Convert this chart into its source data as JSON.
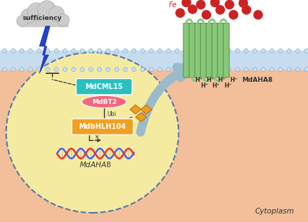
{
  "bg_color": "#F2BF9A",
  "membrane_color": "#C8DCF0",
  "membrane_line_color": "#90B8D8",
  "cell_bg": "#F5EBA0",
  "cell_border": "#5577AA",
  "cytoplasm_label": "Cytoplasm",
  "sufficiency_label": "sufficiency",
  "MdCML15_color": "#2BBFBF",
  "MdBT2_color": "#F06880",
  "MdbHLH104_color": "#F0A020",
  "MdAHA8_label": "MdAHA8",
  "channel_color": "#88C878",
  "channel_dark": "#50904A",
  "Fe_color": "#CC2222",
  "big_arrow_color": "#99BBCC",
  "lightning_color": "#2244BB",
  "membrane_circle_color": "#AACCEE",
  "membrane_circle_edge": "#7AAAC8"
}
